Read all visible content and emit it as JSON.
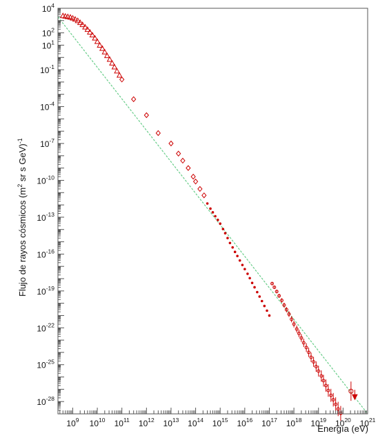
{
  "chart_data": {
    "type": "scatter",
    "title": "",
    "xlabel": "Energía (eV)",
    "ylabel_main": "Flujo de rayos cósmicos (m",
    "ylabel_sup2": "2",
    "ylabel_mid": " sr s GeV)",
    "ylabel_sup": "-1",
    "x_scale": "log",
    "y_scale": "log",
    "xlim": [
      250000000.0,
      1e+21
    ],
    "ylim": [
      1e-29,
      10000.0
    ],
    "grid": false,
    "x_tick_exponents": [
      9,
      10,
      11,
      12,
      13,
      14,
      15,
      16,
      17,
      18,
      19,
      20,
      21
    ],
    "y_tick_exponents": [
      4,
      2,
      1,
      -1,
      -4,
      -7,
      -10,
      -13,
      -16,
      -19,
      -22,
      -25,
      -28
    ],
    "tick_base": "10",
    "colors": {
      "data": "#cc0000",
      "fit": "#66cc88",
      "axis": "#555555"
    },
    "series": [
      {
        "marker": "triangle-open",
        "x": [
          400000000.0,
          500000000.0,
          630000000.0,
          800000000.0,
          1000000000.0,
          1260000000.0,
          1600000000.0,
          2000000000.0,
          2500000000.0,
          3200000000.0,
          4000000000.0,
          5000000000.0,
          6300000000.0,
          8000000000.0,
          10000000000.0,
          12600000000.0,
          16000000000.0,
          20000000000.0,
          25000000000.0,
          32000000000.0,
          40000000000.0,
          50000000000.0,
          63000000000.0,
          80000000000.0
        ],
        "y": [
          2500,
          2300,
          2100,
          1900,
          1600,
          1300,
          1000,
          700,
          470,
          300,
          190,
          115,
          68,
          38,
          20,
          10,
          5.5,
          2.8,
          1.4,
          0.7,
          0.35,
          0.17,
          0.08,
          0.036
        ]
      },
      {
        "marker": "diamond-open",
        "x": [
          100000000000.0,
          300000000000.0,
          1000000000000.0,
          3000000000000.0,
          10000000000000.0,
          20000000000000.0,
          30000000000000.0,
          50000000000000.0,
          80000000000000.0,
          100000000000000.0,
          150000000000000.0,
          220000000000000.0
        ],
        "y": [
          0.016,
          0.0004,
          2e-05,
          7e-07,
          1e-07,
          1.5e-08,
          4e-09,
          1e-09,
          2e-10,
          8e-11,
          2e-11,
          6e-12
        ]
      },
      {
        "marker": "circle-small",
        "x": [
          300000000000000.0,
          400000000000000.0,
          500000000000000.0,
          630000000000000.0,
          800000000000000.0,
          1000000000000000.0,
          1300000000000000.0,
          1600000000000000.0,
          2000000000000000.0,
          2500000000000000.0,
          3200000000000000.0,
          4000000000000000.0,
          5000000000000000.0,
          6300000000000000.0,
          8000000000000000.0,
          1e+16,
          1.3e+16,
          1.6e+16,
          2e+16,
          2.5e+16,
          3.2e+16,
          4e+16,
          5e+16,
          6.3e+16,
          8e+16,
          1e+17
        ],
        "y": [
          1.3e-12,
          5e-13,
          2.5e-13,
          1.2e-13,
          6e-14,
          3e-14,
          1.1e-14,
          5e-15,
          2e-15,
          8e-16,
          3.5e-16,
          1.5e-16,
          7e-17,
          3e-17,
          1.3e-17,
          6e-18,
          2.5e-18,
          1.1e-18,
          4.5e-19,
          2e-19,
          8e-20,
          3.5e-20,
          1.5e-20,
          6e-21,
          2.5e-21,
          1e-21
        ]
      },
      {
        "marker": "circle-error",
        "x": [
          1.3e+17,
          1.6e+17,
          2e+17,
          2.5e+17,
          3.2e+17,
          4e+17,
          5e+17,
          6.3e+17,
          8e+17,
          1e+18,
          1.3e+18,
          1.6e+18,
          2e+18,
          2.5e+18,
          3.2e+18,
          4e+18,
          5e+18,
          6.3e+18,
          8e+18,
          1e+19,
          1.3e+19,
          1.6e+19,
          2e+19,
          2.5e+19,
          3.2e+19,
          4e+19,
          5e+19,
          6.3e+19,
          8e+19,
          1e+20
        ],
        "y": [
          4e-19,
          2e-19,
          9e-20,
          4e-20,
          1.7e-20,
          7e-21,
          3e-21,
          1.3e-21,
          5e-22,
          2e-22,
          8e-23,
          3.5e-23,
          1.5e-23,
          6e-24,
          2.5e-24,
          1e-24,
          4e-25,
          1.7e-25,
          7e-26,
          3e-26,
          1.2e-26,
          5e-27,
          2e-27,
          8e-28,
          3.2e-28,
          1.4e-28,
          6e-29,
          2.5e-29,
          1.1e-29,
          5e-30
        ]
      },
      {
        "marker": "circle-open-error",
        "x": [
          2.1e+20
        ],
        "y": [
          7e-28
        ]
      },
      {
        "marker": "triangle-down-filled",
        "x": [
          3e+20
        ],
        "y": [
          2.5e-28
        ]
      }
    ],
    "fit_line": {
      "style": "dashed",
      "x": [
        250000000.0,
        1e+21
      ],
      "y": [
        2000.0,
        1e-29
      ]
    }
  }
}
